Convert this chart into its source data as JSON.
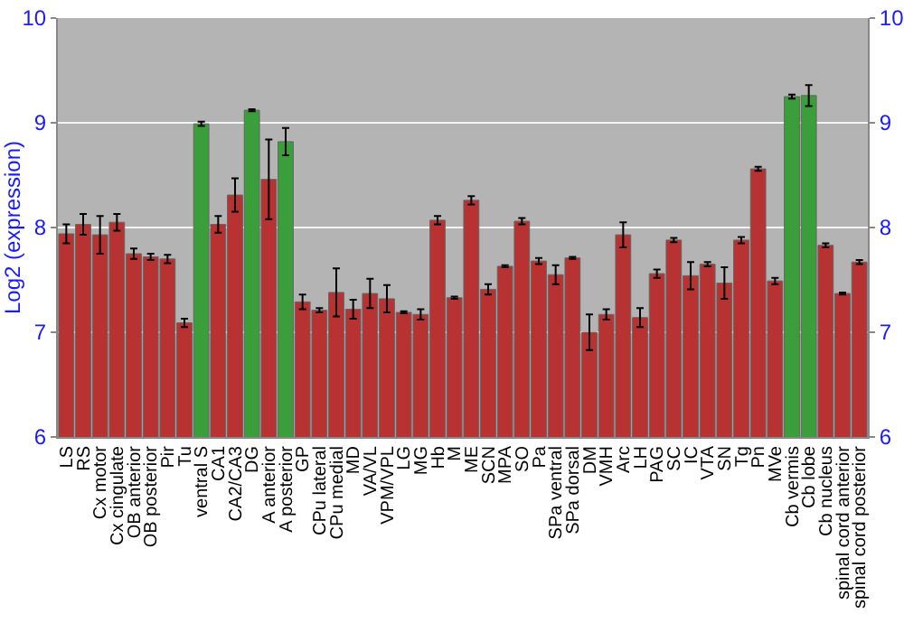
{
  "chart_data": {
    "type": "bar",
    "ylabel": "Log2 (expression)",
    "categories": [
      "LS",
      "RS",
      "Cx motor",
      "Cx cingulate",
      "OB anterior",
      "OB posterior",
      "Pir",
      "Tu",
      "ventral S",
      "CA1",
      "CA2/CA3",
      "DG",
      "A anterior",
      "A posterior",
      "GP",
      "CPu lateral",
      "CPu medial",
      "MD",
      "VA/VL",
      "VPM/VPL",
      "LG",
      "MG",
      "Hb",
      "M",
      "ME",
      "SCN",
      "MPA",
      "SO",
      "Pa",
      "SPa ventral",
      "SPa dorsal",
      "DM",
      "VMH",
      "Arc",
      "LH",
      "PAG",
      "SC",
      "IC",
      "VTA",
      "SN",
      "Tg",
      "Pn",
      "MVe",
      "Cb vermis",
      "Cb lobe",
      "Cb nucleus",
      "spinal cord anterior",
      "spinal cord posterior"
    ],
    "values": [
      7.94,
      8.03,
      7.93,
      8.05,
      7.75,
      7.72,
      7.7,
      7.09,
      8.99,
      8.03,
      8.31,
      9.12,
      8.46,
      8.82,
      7.29,
      7.21,
      7.38,
      7.22,
      7.37,
      7.32,
      7.19,
      7.17,
      8.07,
      7.33,
      8.26,
      7.41,
      7.63,
      8.06,
      7.68,
      7.55,
      7.71,
      7.0,
      7.17,
      7.93,
      7.14,
      7.56,
      7.88,
      7.54,
      7.65,
      7.47,
      7.88,
      8.56,
      7.49,
      9.25,
      9.26,
      7.83,
      7.37,
      7.67
    ],
    "errors": [
      0.09,
      0.1,
      0.18,
      0.08,
      0.05,
      0.03,
      0.04,
      0.04,
      0.02,
      0.08,
      0.16,
      0.01,
      0.38,
      0.13,
      0.07,
      0.02,
      0.23,
      0.09,
      0.14,
      0.13,
      0.01,
      0.05,
      0.04,
      0.01,
      0.04,
      0.05,
      0.01,
      0.03,
      0.03,
      0.09,
      0.01,
      0.17,
      0.05,
      0.12,
      0.09,
      0.04,
      0.02,
      0.13,
      0.02,
      0.15,
      0.03,
      0.02,
      0.03,
      0.02,
      0.1,
      0.02,
      0.01,
      0.02
    ],
    "colors": [
      "#b83232",
      "#b83232",
      "#b83232",
      "#b83232",
      "#b83232",
      "#b83232",
      "#b83232",
      "#b83232",
      "#3a9e3a",
      "#b83232",
      "#b83232",
      "#3a9e3a",
      "#b83232",
      "#3a9e3a",
      "#b83232",
      "#b83232",
      "#b83232",
      "#b83232",
      "#b83232",
      "#b83232",
      "#b83232",
      "#b83232",
      "#b83232",
      "#b83232",
      "#b83232",
      "#b83232",
      "#b83232",
      "#b83232",
      "#b83232",
      "#b83232",
      "#b83232",
      "#b83232",
      "#b83232",
      "#b83232",
      "#b83232",
      "#b83232",
      "#b83232",
      "#b83232",
      "#b83232",
      "#b83232",
      "#b83232",
      "#b83232",
      "#b83232",
      "#3a9e3a",
      "#3a9e3a",
      "#b83232",
      "#b83232",
      "#b83232"
    ],
    "ylim": [
      6,
      10
    ],
    "yticks": [
      6,
      7,
      8,
      9,
      10
    ],
    "y2lim": [
      6,
      10
    ],
    "y2ticks": [
      6,
      7,
      8,
      9,
      10
    ],
    "grid": "y"
  }
}
